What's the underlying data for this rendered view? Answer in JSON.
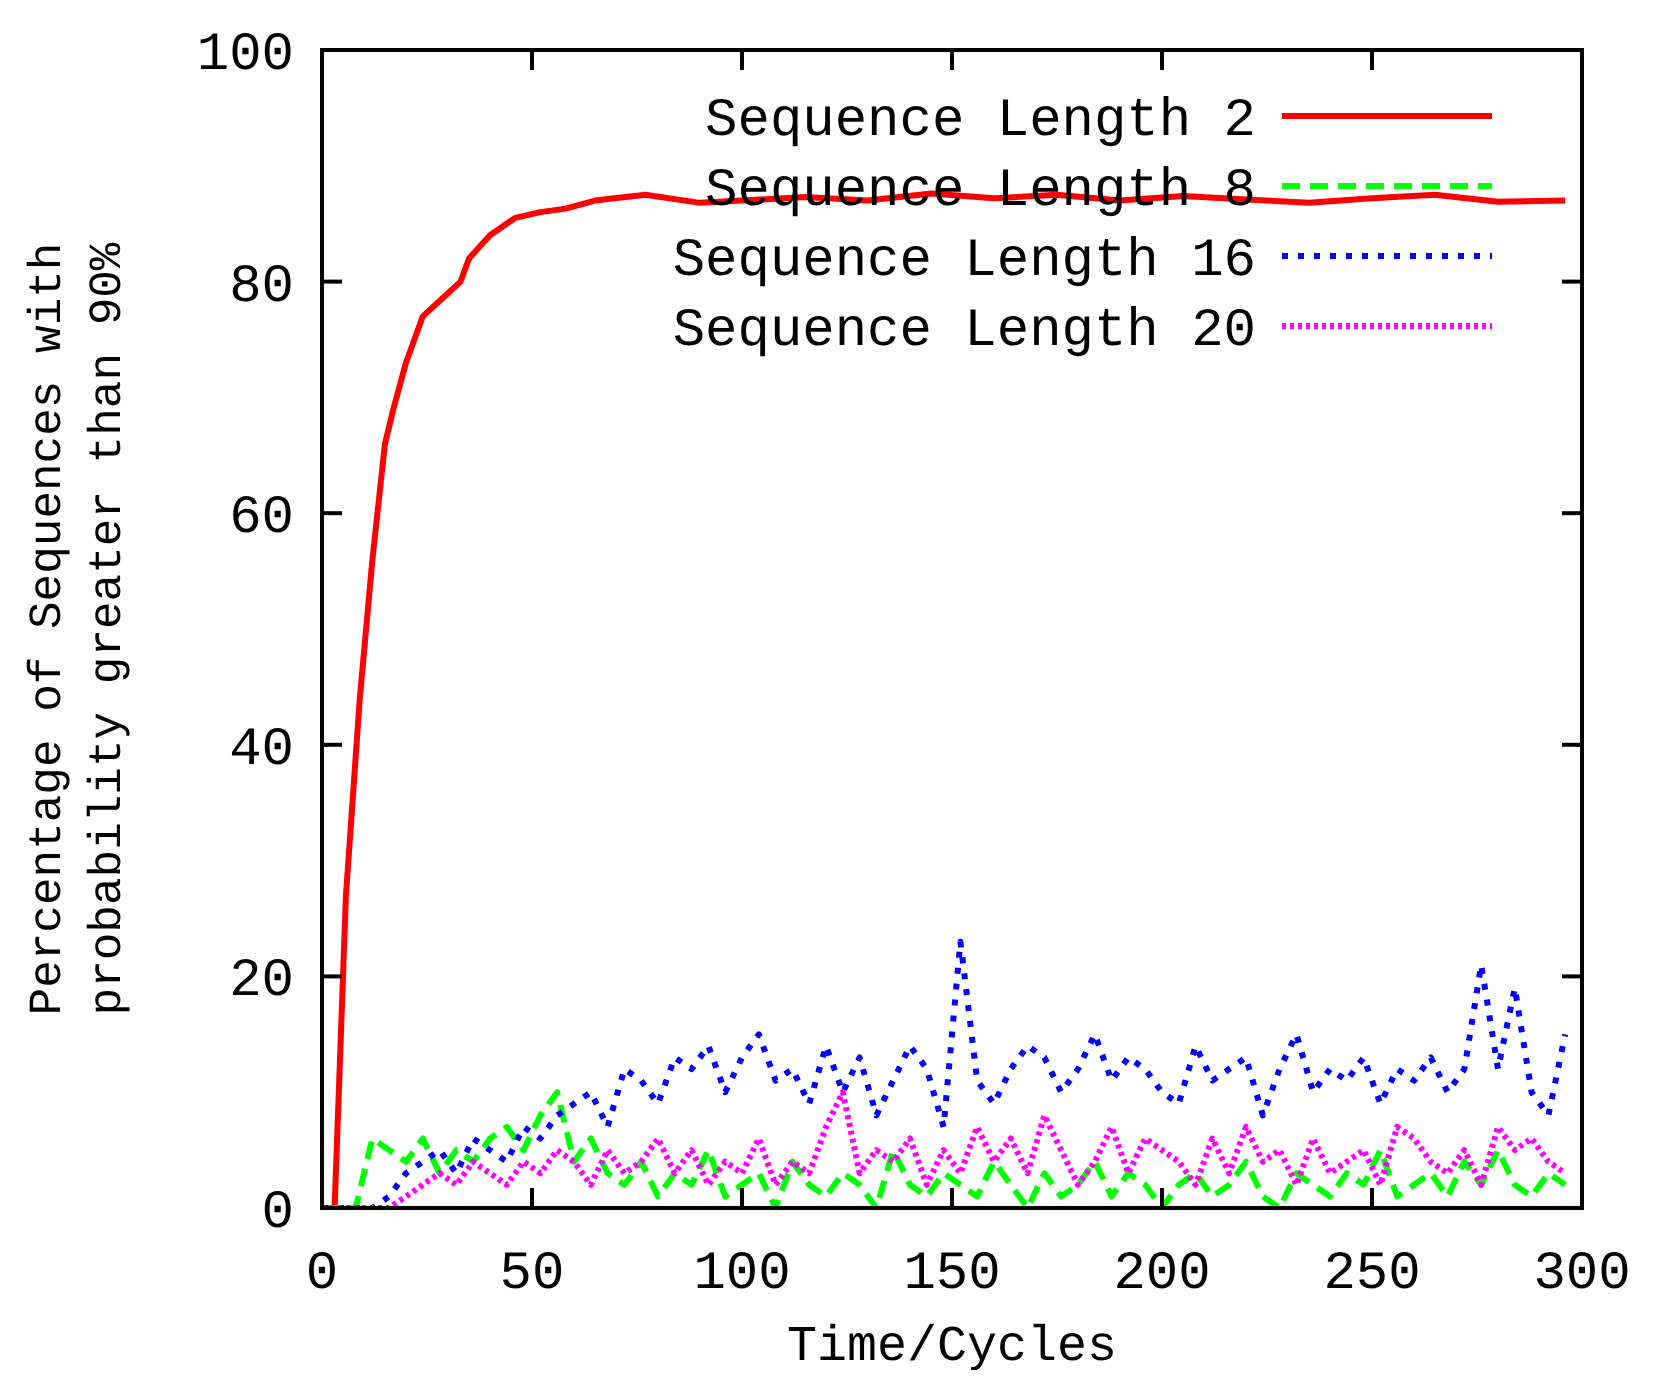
{
  "chart_data": {
    "type": "line",
    "xlabel": "Time/Cycles",
    "ylabel": "Percentage of Sequences with\nprobability greater than 90%",
    "xlim": [
      0,
      300
    ],
    "ylim": [
      0,
      100
    ],
    "xticks": [
      0,
      50,
      100,
      150,
      200,
      250,
      300
    ],
    "yticks": [
      0,
      20,
      40,
      60,
      80,
      100
    ],
    "grid": false,
    "legend": "top right",
    "x": [
      0,
      4,
      8,
      12,
      16,
      20,
      24,
      28,
      32,
      36,
      40,
      44,
      48,
      52,
      56,
      60,
      64,
      68,
      72,
      76,
      80,
      84,
      88,
      92,
      96,
      100,
      104,
      108,
      112,
      116,
      120,
      124,
      128,
      132,
      136,
      140,
      144,
      148,
      152,
      156,
      160,
      164,
      168,
      172,
      176,
      180,
      184,
      188,
      192,
      196,
      200,
      204,
      208,
      212,
      216,
      220,
      224,
      228,
      232,
      236,
      240,
      244,
      248,
      252,
      256,
      260,
      264,
      268,
      272,
      276,
      280,
      284,
      288,
      292,
      296
    ],
    "series": [
      {
        "name": "Sequence Length 2",
        "color": "#ff0000",
        "line_style": "solid",
        "x": [
          0,
          3,
          5.7,
          9,
          12,
          15,
          17,
          20,
          24,
          27,
          30,
          33,
          35,
          40,
          46,
          52,
          58,
          65,
          77,
          90,
          100,
          115,
          130,
          145,
          160,
          175,
          190,
          205,
          220,
          235,
          250,
          265,
          280,
          296
        ],
        "values": [
          0,
          0,
          27,
          44,
          56,
          66,
          69,
          73,
          77,
          78,
          79,
          80,
          82,
          84,
          85.5,
          86,
          86.3,
          87,
          87.5,
          86.8,
          87,
          87.3,
          87,
          87.6,
          87.2,
          87.5,
          87,
          87.4,
          87.1,
          86.8,
          87.2,
          87.5,
          86.9,
          87
        ]
      },
      {
        "name": "Sequence Length 8",
        "color": "#00ff00",
        "line_style": "dashed",
        "values": [
          0,
          0,
          0,
          6,
          5,
          4,
          6,
          3,
          5,
          4,
          6,
          7,
          5,
          8,
          10,
          4,
          6,
          3,
          2,
          4,
          1,
          3,
          2,
          5,
          1,
          2,
          3,
          0,
          4,
          2,
          1,
          3,
          2,
          0,
          5,
          2,
          1,
          3,
          2,
          1,
          4,
          2,
          0,
          3,
          1,
          2,
          4,
          1,
          3,
          2,
          0,
          2,
          3,
          1,
          2,
          4,
          1,
          0,
          3,
          2,
          1,
          3,
          2,
          5,
          1,
          2,
          3,
          1,
          4,
          2,
          5,
          2,
          1,
          3,
          2
        ]
      },
      {
        "name": "Sequence Length 16",
        "color": "#0000ff",
        "line_style": "dotted",
        "values": [
          0,
          0,
          0,
          0,
          1,
          3,
          4,
          5,
          3,
          6,
          5,
          4,
          7,
          6,
          8,
          9,
          10,
          7,
          12,
          11,
          9,
          13,
          12,
          14,
          10,
          13,
          15,
          11,
          12,
          9,
          14,
          10,
          13,
          8,
          11,
          14,
          12,
          7,
          23,
          11,
          9,
          12,
          14,
          13,
          10,
          12,
          15,
          11,
          13,
          12,
          10,
          9,
          14,
          11,
          12,
          13,
          8,
          12,
          15,
          10,
          12,
          11,
          13,
          9,
          12,
          11,
          13,
          10,
          12,
          21,
          12,
          19,
          10,
          8,
          15
        ]
      },
      {
        "name": "Sequence Length 20",
        "color": "#ff00ff",
        "line_style": "dotted",
        "values": [
          0,
          0,
          0,
          0,
          0,
          1,
          2,
          3,
          2,
          4,
          3,
          2,
          4,
          3,
          5,
          4,
          2,
          5,
          3,
          4,
          6,
          3,
          5,
          2,
          4,
          3,
          6,
          2,
          4,
          3,
          7,
          10,
          3,
          5,
          4,
          6,
          2,
          5,
          3,
          7,
          4,
          6,
          3,
          8,
          5,
          2,
          4,
          7,
          3,
          6,
          5,
          4,
          2,
          6,
          3,
          7,
          4,
          5,
          2,
          6,
          3,
          4,
          5,
          2,
          7,
          6,
          4,
          3,
          5,
          2,
          7,
          5,
          6,
          4,
          3
        ]
      }
    ]
  }
}
